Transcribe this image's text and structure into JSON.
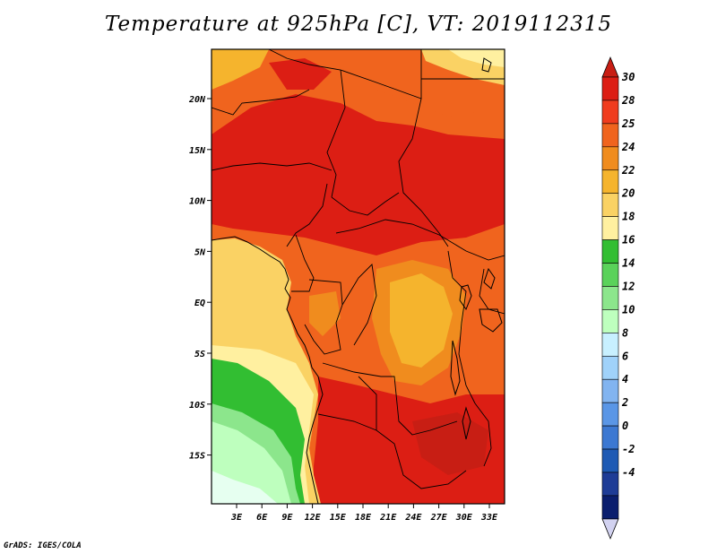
{
  "title": "Temperature at 925hPa [C], VT: 2019112315",
  "credit": "GrADS: IGES/COLA",
  "map": {
    "lat_labels": [
      "20N",
      "15N",
      "10N",
      "5N",
      "EQ",
      "5S",
      "10S",
      "15S"
    ],
    "lon_labels": [
      "3E",
      "6E",
      "9E",
      "12E",
      "15E",
      "18E",
      "21E",
      "24E",
      "27E",
      "30E",
      "33E"
    ]
  },
  "colorbar": {
    "labels": [
      "30",
      "28",
      "25",
      "24",
      "22",
      "20",
      "18",
      "16",
      "14",
      "12",
      "10",
      "8",
      "6",
      "4",
      "2",
      "0",
      "-2",
      "-4"
    ],
    "colors": [
      "#dc1e14",
      "#f03c1e",
      "#f0641e",
      "#f08c1e",
      "#f5b42d",
      "#fad264",
      "#fff0a0",
      "#32be32",
      "#5ad25a",
      "#8ce68c",
      "#beffbe",
      "#c8f0ff",
      "#a0d2fa",
      "#82b4f0",
      "#5a96e6",
      "#3c78d2",
      "#1e5ab4",
      "#1e3c96",
      "#0a1e6e"
    ],
    "over_color": "#c81e14",
    "under_color": "#d2d2f0"
  }
}
